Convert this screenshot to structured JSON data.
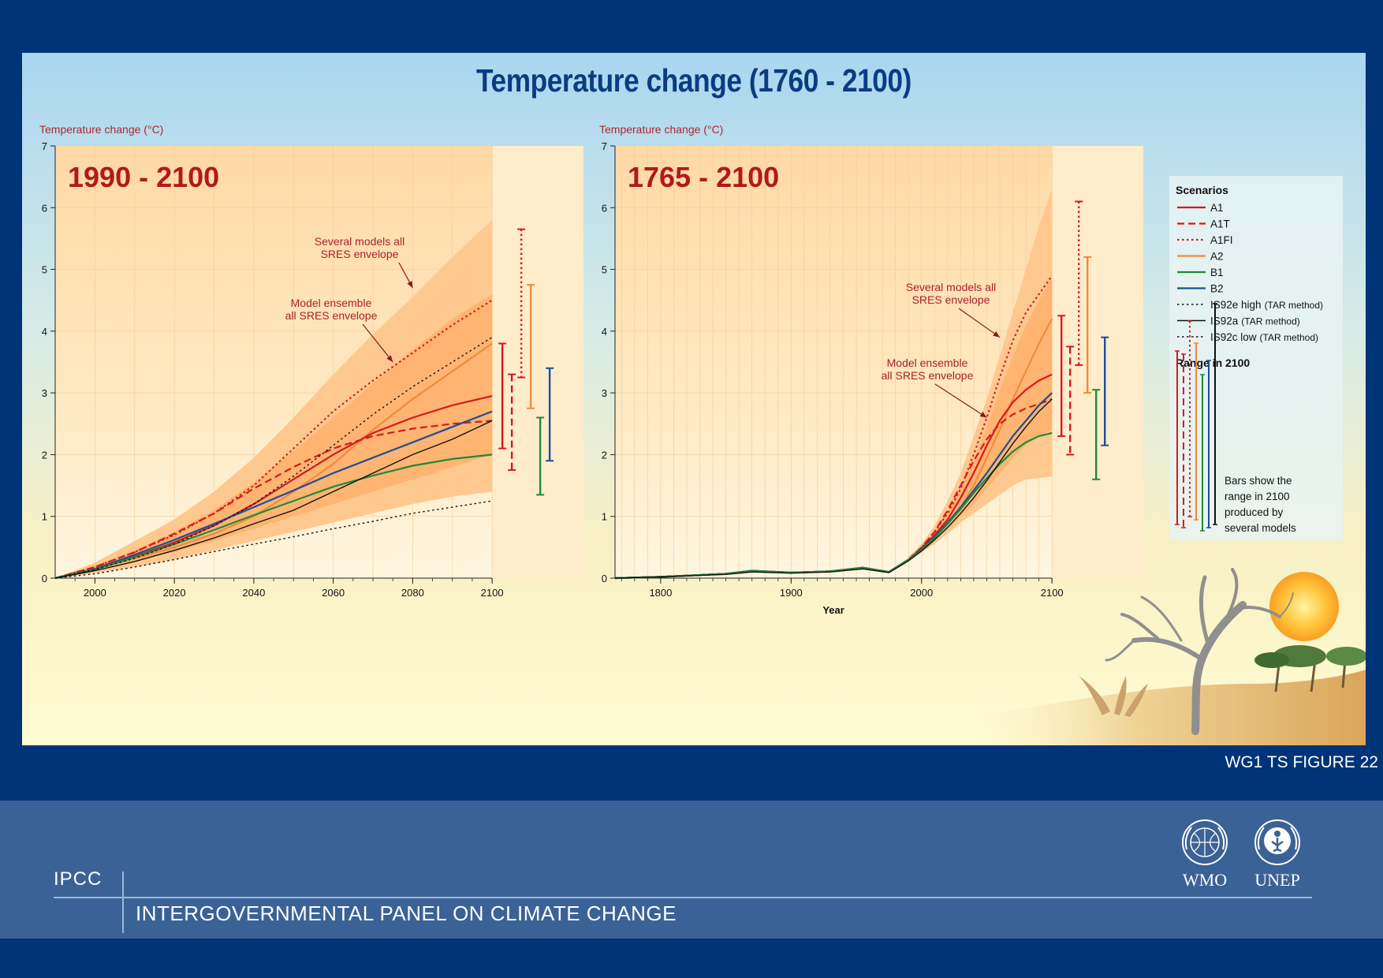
{
  "title": "Temperature change (1760 - 2100)",
  "figure_ref": "WG1 TS FIGURE 22",
  "footer": {
    "ipcc": "IPCC",
    "ipcc_full": "INTERGOVERNMENTAL PANEL ON CLIMATE CHANGE",
    "wmo": "WMO",
    "unep": "UNEP"
  },
  "colors": {
    "A1": "#d7191c",
    "A1T": "#d7191c",
    "A1FI": "#d7191c",
    "A2": "#f08a3c",
    "B1": "#1f8a3a",
    "B2": "#1d4e96",
    "IS92": "#111111"
  },
  "legend": {
    "title": "Scenarios",
    "items": [
      {
        "key": "A1",
        "label": "A1",
        "note": "",
        "style": "solid"
      },
      {
        "key": "A1T",
        "label": "A1T",
        "note": "",
        "style": "dashed"
      },
      {
        "key": "A1FI",
        "label": "A1FI",
        "note": "",
        "style": "dotted"
      },
      {
        "key": "A2",
        "label": "A2",
        "note": "",
        "style": "solid"
      },
      {
        "key": "B1",
        "label": "B1",
        "note": "",
        "style": "solid"
      },
      {
        "key": "B2",
        "label": "B2",
        "note": "",
        "style": "solid"
      },
      {
        "key": "IS92",
        "label": "IS92e high",
        "note": "(TAR method)",
        "style": "dotted"
      },
      {
        "key": "IS92",
        "label": "IS92a",
        "note": "(TAR method)",
        "style": "solid"
      },
      {
        "key": "IS92",
        "label": "IS92c low",
        "note": "(TAR method)",
        "style": "dotted"
      }
    ],
    "range_title": "Range in 2100",
    "range_text": [
      "Bars show the",
      "range in 2100",
      "produced by",
      "several models"
    ]
  },
  "chart_data": [
    {
      "type": "line",
      "panel_label": "1990 - 2100",
      "ylabel": "Temperature change (°C)",
      "xlabel": "",
      "xlim": [
        1990,
        2123
      ],
      "ylim": [
        0,
        7
      ],
      "xticks": [
        2000,
        2020,
        2040,
        2060,
        2080,
        2100
      ],
      "yticks": [
        0,
        1,
        2,
        3,
        4,
        5,
        6,
        7
      ],
      "annotations": [
        {
          "text": [
            "Several models all",
            "SRES envelope"
          ],
          "target": [
            2080,
            4.7
          ]
        },
        {
          "text": [
            "Model ensemble",
            "all SRES envelope"
          ],
          "target": [
            2075,
            3.5
          ]
        }
      ],
      "envelope_outer": {
        "x": [
          1990,
          2000,
          2010,
          2020,
          2030,
          2040,
          2050,
          2060,
          2070,
          2080,
          2090,
          2100
        ],
        "upper": [
          0,
          0.25,
          0.6,
          0.95,
          1.4,
          1.95,
          2.6,
          3.3,
          3.95,
          4.55,
          5.2,
          5.8
        ],
        "lower": [
          0,
          0.08,
          0.18,
          0.3,
          0.45,
          0.6,
          0.75,
          0.9,
          1.05,
          1.2,
          1.32,
          1.4
        ]
      },
      "envelope_inner": {
        "x": [
          1990,
          2000,
          2010,
          2020,
          2030,
          2040,
          2050,
          2060,
          2070,
          2080,
          2090,
          2100
        ],
        "upper": [
          0,
          0.2,
          0.45,
          0.75,
          1.1,
          1.55,
          2.05,
          2.6,
          3.15,
          3.7,
          4.2,
          4.6
        ],
        "lower": [
          0,
          0.12,
          0.28,
          0.42,
          0.6,
          0.8,
          1.0,
          1.2,
          1.4,
          1.6,
          1.8,
          2.0
        ]
      },
      "series": [
        {
          "name": "A1FI",
          "key": "A1FI",
          "style": "dotted",
          "x": [
            1990,
            2000,
            2010,
            2020,
            2030,
            2040,
            2050,
            2060,
            2070,
            2080,
            2090,
            2100
          ],
          "y": [
            0,
            0.18,
            0.42,
            0.7,
            1.05,
            1.5,
            2.1,
            2.7,
            3.2,
            3.65,
            4.1,
            4.5
          ]
        },
        {
          "name": "A2",
          "key": "A2",
          "style": "solid",
          "x": [
            1990,
            2000,
            2010,
            2020,
            2030,
            2040,
            2050,
            2060,
            2070,
            2080,
            2090,
            2100
          ],
          "y": [
            0,
            0.15,
            0.32,
            0.5,
            0.72,
            1.0,
            1.4,
            1.85,
            2.4,
            2.9,
            3.35,
            3.8
          ]
        },
        {
          "name": "A1",
          "key": "A1",
          "style": "solid",
          "x": [
            1990,
            2000,
            2010,
            2020,
            2030,
            2040,
            2050,
            2060,
            2070,
            2080,
            2090,
            2100
          ],
          "y": [
            0,
            0.15,
            0.35,
            0.58,
            0.85,
            1.2,
            1.6,
            2.0,
            2.35,
            2.6,
            2.8,
            2.95
          ]
        },
        {
          "name": "A1T",
          "key": "A1T",
          "style": "dashed",
          "x": [
            1990,
            2000,
            2010,
            2020,
            2030,
            2040,
            2050,
            2060,
            2070,
            2080,
            2090,
            2100
          ],
          "y": [
            0,
            0.18,
            0.42,
            0.72,
            1.05,
            1.45,
            1.8,
            2.1,
            2.3,
            2.42,
            2.5,
            2.55
          ]
        },
        {
          "name": "B2",
          "key": "B2",
          "style": "solid",
          "x": [
            1990,
            2000,
            2010,
            2020,
            2030,
            2040,
            2050,
            2060,
            2070,
            2080,
            2090,
            2100
          ],
          "y": [
            0,
            0.15,
            0.38,
            0.62,
            0.88,
            1.15,
            1.42,
            1.7,
            1.95,
            2.2,
            2.45,
            2.7
          ]
        },
        {
          "name": "B1",
          "key": "B1",
          "style": "solid",
          "x": [
            1990,
            2000,
            2010,
            2020,
            2030,
            2040,
            2050,
            2060,
            2070,
            2080,
            2090,
            2100
          ],
          "y": [
            0,
            0.14,
            0.34,
            0.55,
            0.78,
            1.02,
            1.25,
            1.48,
            1.66,
            1.82,
            1.93,
            2.0
          ]
        },
        {
          "name": "IS92e high",
          "key": "IS92",
          "style": "dotted",
          "x": [
            1990,
            2000,
            2010,
            2020,
            2030,
            2040,
            2050,
            2060,
            2070,
            2080,
            2090,
            2100
          ],
          "y": [
            0,
            0.14,
            0.32,
            0.55,
            0.85,
            1.2,
            1.65,
            2.15,
            2.65,
            3.1,
            3.5,
            3.9
          ]
        },
        {
          "name": "IS92a",
          "key": "IS92",
          "style": "solid",
          "x": [
            1990,
            2000,
            2010,
            2020,
            2030,
            2040,
            2050,
            2060,
            2070,
            2080,
            2090,
            2100
          ],
          "y": [
            0,
            0.12,
            0.27,
            0.45,
            0.65,
            0.88,
            1.1,
            1.4,
            1.7,
            2.0,
            2.25,
            2.55
          ]
        },
        {
          "name": "IS92c low",
          "key": "IS92",
          "style": "dotted",
          "x": [
            1990,
            2000,
            2010,
            2020,
            2030,
            2040,
            2050,
            2060,
            2070,
            2080,
            2090,
            2100
          ],
          "y": [
            0,
            0.07,
            0.18,
            0.3,
            0.43,
            0.55,
            0.67,
            0.8,
            0.92,
            1.05,
            1.15,
            1.25
          ]
        }
      ],
      "range_bars": [
        {
          "key": "A1",
          "style": "solid",
          "low": 2.1,
          "high": 3.8
        },
        {
          "key": "A1T",
          "style": "dashed",
          "low": 1.75,
          "high": 3.3
        },
        {
          "key": "A1FI",
          "style": "dotted",
          "low": 3.25,
          "high": 5.65
        },
        {
          "key": "A2",
          "style": "solid",
          "low": 2.75,
          "high": 4.75
        },
        {
          "key": "B1",
          "style": "solid",
          "low": 1.35,
          "high": 2.6
        },
        {
          "key": "B2",
          "style": "solid",
          "low": 1.9,
          "high": 3.4
        }
      ]
    },
    {
      "type": "line",
      "panel_label": "1765 - 2100",
      "ylabel": "Temperature change (°C)",
      "xlabel": "Year",
      "xlim": [
        1765,
        2170
      ],
      "ylim": [
        0,
        7
      ],
      "xticks": [
        1800,
        1900,
        2000,
        2100
      ],
      "yticks": [
        0,
        1,
        2,
        3,
        4,
        5,
        6,
        7
      ],
      "annotations": [
        {
          "text": [
            "Several models all",
            "SRES envelope"
          ],
          "target": [
            2060,
            3.9
          ]
        },
        {
          "text": [
            "Model ensemble",
            "all SRES envelope"
          ],
          "target": [
            2050,
            2.6
          ]
        }
      ],
      "envelope_outer": {
        "x": [
          1990,
          2000,
          2010,
          2020,
          2030,
          2040,
          2050,
          2060,
          2070,
          2080,
          2090,
          2100
        ],
        "upper": [
          0.35,
          0.55,
          0.85,
          1.25,
          1.7,
          2.3,
          2.9,
          3.6,
          4.3,
          5.0,
          5.7,
          6.3
        ],
        "lower": [
          0.3,
          0.42,
          0.55,
          0.72,
          0.9,
          1.05,
          1.2,
          1.35,
          1.5,
          1.6,
          1.62,
          1.65
        ]
      },
      "envelope_inner": {
        "x": [
          1990,
          2000,
          2010,
          2020,
          2030,
          2040,
          2050,
          2060,
          2070,
          2080,
          2090,
          2100
        ],
        "upper": [
          0.33,
          0.5,
          0.75,
          1.05,
          1.45,
          1.9,
          2.45,
          3.05,
          3.6,
          4.1,
          4.5,
          4.9
        ],
        "lower": [
          0.31,
          0.45,
          0.62,
          0.8,
          1.0,
          1.2,
          1.45,
          1.7,
          1.95,
          2.15,
          2.3,
          2.4
        ]
      },
      "series": [
        {
          "name": "A1FI",
          "key": "A1FI",
          "style": "dotted",
          "x": [
            1765,
            1800,
            1850,
            1870,
            1900,
            1930,
            1955,
            1975,
            1990,
            2000,
            2010,
            2020,
            2030,
            2040,
            2050,
            2060,
            2070,
            2080,
            2090,
            2100
          ],
          "y": [
            0,
            0.02,
            0.07,
            0.12,
            0.09,
            0.11,
            0.17,
            0.1,
            0.3,
            0.5,
            0.75,
            1.05,
            1.45,
            2.0,
            2.6,
            3.25,
            3.85,
            4.3,
            4.6,
            4.9
          ]
        },
        {
          "name": "A2",
          "key": "A2",
          "style": "solid",
          "x": [
            1765,
            1800,
            1850,
            1870,
            1900,
            1930,
            1955,
            1975,
            1990,
            2000,
            2010,
            2020,
            2030,
            2040,
            2050,
            2060,
            2070,
            2080,
            2090,
            2100
          ],
          "y": [
            0,
            0.02,
            0.07,
            0.12,
            0.09,
            0.11,
            0.17,
            0.1,
            0.3,
            0.48,
            0.68,
            0.9,
            1.15,
            1.5,
            1.95,
            2.4,
            2.9,
            3.35,
            3.8,
            4.2
          ]
        },
        {
          "name": "A1",
          "key": "A1",
          "style": "solid",
          "x": [
            1765,
            1800,
            1850,
            1870,
            1900,
            1930,
            1955,
            1975,
            1990,
            2000,
            2010,
            2020,
            2030,
            2040,
            2050,
            2060,
            2070,
            2080,
            2090,
            2100
          ],
          "y": [
            0,
            0.02,
            0.07,
            0.12,
            0.09,
            0.11,
            0.17,
            0.1,
            0.3,
            0.48,
            0.7,
            0.95,
            1.3,
            1.7,
            2.15,
            2.55,
            2.85,
            3.05,
            3.2,
            3.3
          ]
        },
        {
          "name": "A1T",
          "key": "A1T",
          "style": "dashed",
          "x": [
            1765,
            1800,
            1850,
            1870,
            1900,
            1930,
            1955,
            1975,
            1990,
            2000,
            2010,
            2020,
            2030,
            2040,
            2050,
            2060,
            2070,
            2080,
            2090,
            2100
          ],
          "y": [
            0,
            0.02,
            0.07,
            0.12,
            0.09,
            0.11,
            0.17,
            0.1,
            0.3,
            0.5,
            0.75,
            1.1,
            1.5,
            1.9,
            2.25,
            2.5,
            2.65,
            2.75,
            2.82,
            2.9
          ]
        },
        {
          "name": "B2",
          "key": "B2",
          "style": "solid",
          "x": [
            1765,
            1800,
            1850,
            1870,
            1900,
            1930,
            1955,
            1975,
            1990,
            2000,
            2010,
            2020,
            2030,
            2040,
            2050,
            2060,
            2070,
            2080,
            2090,
            2100
          ],
          "y": [
            0,
            0.02,
            0.07,
            0.12,
            0.09,
            0.11,
            0.17,
            0.1,
            0.3,
            0.47,
            0.67,
            0.9,
            1.15,
            1.42,
            1.7,
            2.0,
            2.3,
            2.55,
            2.8,
            3.0
          ]
        },
        {
          "name": "B1",
          "key": "B1",
          "style": "solid",
          "x": [
            1765,
            1800,
            1850,
            1870,
            1900,
            1930,
            1955,
            1975,
            1990,
            2000,
            2010,
            2020,
            2030,
            2040,
            2050,
            2060,
            2070,
            2080,
            2090,
            2100
          ],
          "y": [
            0,
            0.02,
            0.07,
            0.12,
            0.09,
            0.11,
            0.17,
            0.1,
            0.3,
            0.46,
            0.65,
            0.88,
            1.12,
            1.38,
            1.62,
            1.85,
            2.05,
            2.2,
            2.3,
            2.35
          ]
        },
        {
          "name": "IS92a",
          "key": "IS92",
          "style": "solid",
          "x": [
            1765,
            1800,
            1850,
            1870,
            1900,
            1930,
            1955,
            1975,
            1990,
            2000,
            2010,
            2020,
            2030,
            2040,
            2050,
            2060,
            2070,
            2080,
            2090,
            2100
          ],
          "y": [
            0,
            0.02,
            0.06,
            0.1,
            0.08,
            0.1,
            0.15,
            0.09,
            0.28,
            0.44,
            0.62,
            0.82,
            1.05,
            1.3,
            1.58,
            1.88,
            2.18,
            2.45,
            2.7,
            2.9
          ]
        }
      ],
      "range_bars": [
        {
          "key": "A1",
          "style": "solid",
          "low": 2.3,
          "high": 4.25
        },
        {
          "key": "A1T",
          "style": "dashed",
          "low": 2.0,
          "high": 3.75
        },
        {
          "key": "A1FI",
          "style": "dotted",
          "low": 3.45,
          "high": 6.1
        },
        {
          "key": "A2",
          "style": "solid",
          "low": 3.0,
          "high": 5.2
        },
        {
          "key": "B1",
          "style": "solid",
          "low": 1.6,
          "high": 3.05
        },
        {
          "key": "B2",
          "style": "solid",
          "low": 2.15,
          "high": 3.9
        }
      ]
    }
  ]
}
